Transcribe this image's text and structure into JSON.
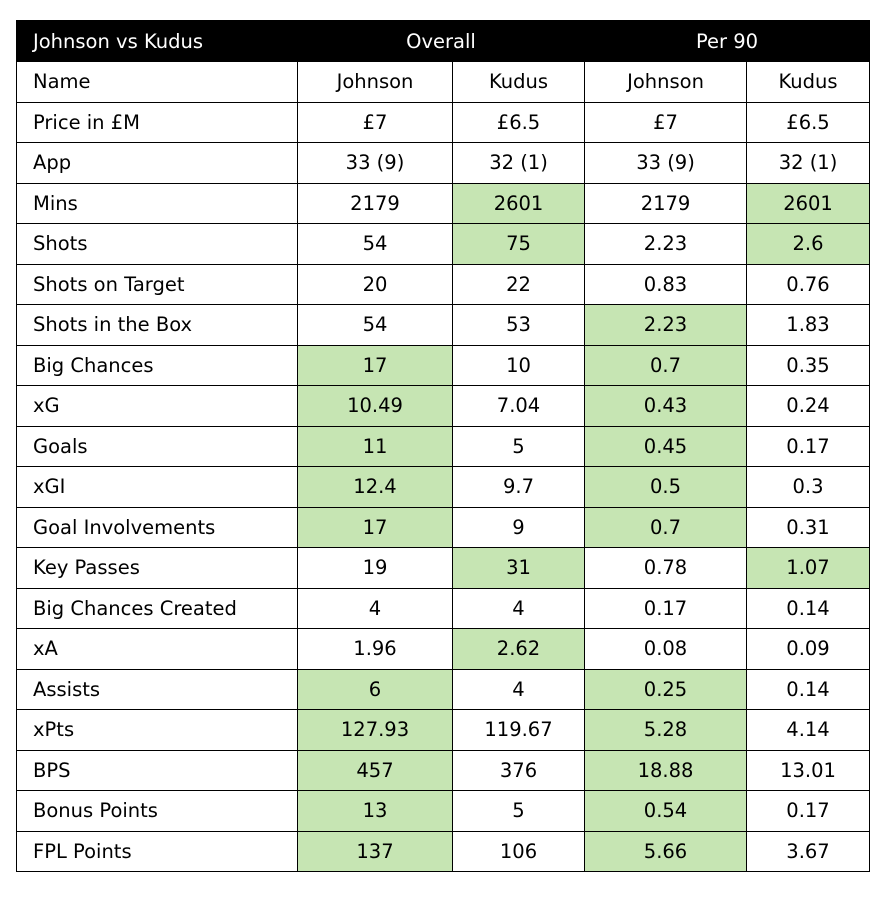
{
  "title": "Johnson vs Kudus",
  "groups": [
    "Overall",
    "Per 90"
  ],
  "highlight_color": "#c6e5b3",
  "rows": [
    {
      "label": "Name",
      "values": [
        "Johnson",
        "Kudus",
        "Johnson",
        "Kudus"
      ],
      "hl": [
        false,
        false,
        false,
        false
      ]
    },
    {
      "label": "Price in £M",
      "values": [
        "£7",
        "£6.5",
        "£7",
        "£6.5"
      ],
      "hl": [
        false,
        false,
        false,
        false
      ]
    },
    {
      "label": "App",
      "values": [
        "33 (9)",
        "32 (1)",
        "33 (9)",
        "32 (1)"
      ],
      "hl": [
        false,
        false,
        false,
        false
      ]
    },
    {
      "label": "Mins",
      "values": [
        "2179",
        "2601",
        "2179",
        "2601"
      ],
      "hl": [
        false,
        true,
        false,
        true
      ]
    },
    {
      "label": "Shots",
      "values": [
        "54",
        "75",
        "2.23",
        "2.6"
      ],
      "hl": [
        false,
        true,
        false,
        true
      ]
    },
    {
      "label": "Shots on Target",
      "values": [
        "20",
        "22",
        "0.83",
        "0.76"
      ],
      "hl": [
        false,
        false,
        false,
        false
      ]
    },
    {
      "label": "Shots in the Box",
      "values": [
        "54",
        "53",
        "2.23",
        "1.83"
      ],
      "hl": [
        false,
        false,
        true,
        false
      ]
    },
    {
      "label": "Big Chances",
      "values": [
        "17",
        "10",
        "0.7",
        "0.35"
      ],
      "hl": [
        true,
        false,
        true,
        false
      ]
    },
    {
      "label": "xG",
      "values": [
        "10.49",
        "7.04",
        "0.43",
        "0.24"
      ],
      "hl": [
        true,
        false,
        true,
        false
      ]
    },
    {
      "label": "Goals",
      "values": [
        "11",
        "5",
        "0.45",
        "0.17"
      ],
      "hl": [
        true,
        false,
        true,
        false
      ]
    },
    {
      "label": "xGI",
      "values": [
        "12.4",
        "9.7",
        "0.5",
        "0.3"
      ],
      "hl": [
        true,
        false,
        true,
        false
      ]
    },
    {
      "label": "Goal Involvements",
      "values": [
        "17",
        "9",
        "0.7",
        "0.31"
      ],
      "hl": [
        true,
        false,
        true,
        false
      ]
    },
    {
      "label": "Key Passes",
      "values": [
        "19",
        "31",
        "0.78",
        "1.07"
      ],
      "hl": [
        false,
        true,
        false,
        true
      ]
    },
    {
      "label": "Big Chances Created",
      "values": [
        "4",
        "4",
        "0.17",
        "0.14"
      ],
      "hl": [
        false,
        false,
        false,
        false
      ]
    },
    {
      "label": "xA",
      "values": [
        "1.96",
        "2.62",
        "0.08",
        "0.09"
      ],
      "hl": [
        false,
        true,
        false,
        false
      ]
    },
    {
      "label": "Assists",
      "values": [
        "6",
        "4",
        "0.25",
        "0.14"
      ],
      "hl": [
        true,
        false,
        true,
        false
      ]
    },
    {
      "label": "xPts",
      "values": [
        "127.93",
        "119.67",
        "5.28",
        "4.14"
      ],
      "hl": [
        true,
        false,
        true,
        false
      ]
    },
    {
      "label": "BPS",
      "values": [
        "457",
        "376",
        "18.88",
        "13.01"
      ],
      "hl": [
        true,
        false,
        true,
        false
      ]
    },
    {
      "label": "Bonus Points",
      "values": [
        "13",
        "5",
        "0.54",
        "0.17"
      ],
      "hl": [
        true,
        false,
        true,
        false
      ]
    },
    {
      "label": "FPL Points",
      "values": [
        "137",
        "106",
        "5.66",
        "3.67"
      ],
      "hl": [
        true,
        false,
        true,
        false
      ]
    }
  ]
}
